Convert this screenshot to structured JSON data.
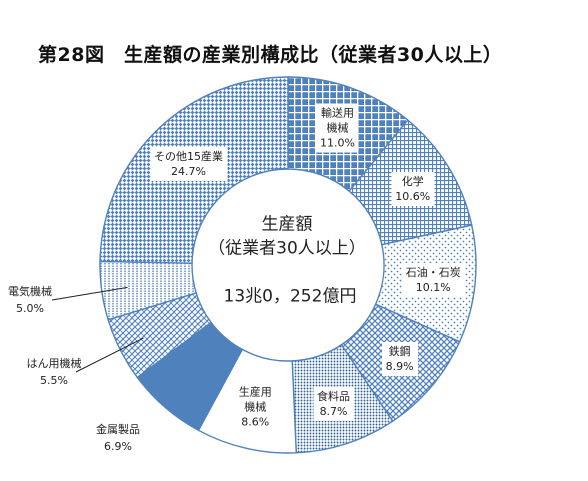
{
  "chart_data": {
    "type": "pie",
    "title": "第28図　生産額の産業別構成比（従業者30人以上）",
    "center_title": "生産額",
    "center_subtitle": "（従業者30人以上）",
    "center_total": "13兆0，252億円",
    "slices": [
      {
        "label_lines": [
          "輸送用",
          "機械"
        ],
        "value": 11.0,
        "value_text": "11.0%",
        "pattern": "grid-coarse-blue"
      },
      {
        "label_lines": [
          "化学"
        ],
        "value": 10.6,
        "value_text": "10.6%",
        "pattern": "grid-fine-blue"
      },
      {
        "label_lines": [
          "石油・石炭"
        ],
        "value": 10.1,
        "value_text": "10.1%",
        "pattern": "dots-sparse"
      },
      {
        "label_lines": [
          "鉄鋼"
        ],
        "value": 8.9,
        "value_text": "8.9%",
        "pattern": "diag-cross-blue"
      },
      {
        "label_lines": [
          "食料品"
        ],
        "value": 8.7,
        "value_text": "8.7%",
        "pattern": "dots-dense"
      },
      {
        "label_lines": [
          "生産用",
          "機械"
        ],
        "value": 8.6,
        "value_text": "8.6%",
        "pattern": "white"
      },
      {
        "label_lines": [
          "金属製品"
        ],
        "value": 6.9,
        "value_text": "6.9%",
        "pattern": "solid-blue"
      },
      {
        "label_lines": [
          "はん用機械"
        ],
        "value": 5.5,
        "value_text": "5.5%",
        "pattern": "diag-light"
      },
      {
        "label_lines": [
          "電気機械"
        ],
        "value": 5.0,
        "value_text": "5.0%",
        "pattern": "dots-vertical"
      },
      {
        "label_lines": [
          "その他15産業"
        ],
        "value": 24.7,
        "value_text": "24.7%",
        "pattern": "checker-blue"
      }
    ],
    "colors": {
      "blue": "#4f81bd",
      "dark_blue": "#2f5f9e",
      "outline": "#4f81bd"
    }
  }
}
